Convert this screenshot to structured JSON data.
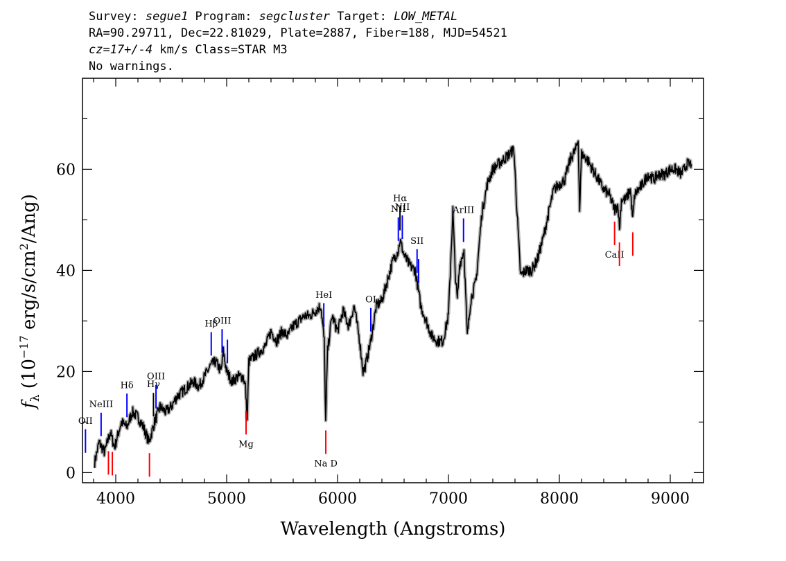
{
  "header": {
    "line1": {
      "survey_label": "Survey: ",
      "survey": "segue1",
      "program_label": " Program: ",
      "program": "segcluster",
      "target_label": " Target: ",
      "target": "LOW_METAL"
    },
    "line2": "RA=90.29711, Dec=22.81029, Plate=2887, Fiber=188, MJD=54521",
    "line3": {
      "cz": "cz=17+/-4",
      "rest": " km/s Class=STAR M3"
    },
    "line4": "No warnings."
  },
  "chart_data": {
    "type": "line",
    "xlabel": "Wavelength (Angstroms)",
    "ylabel": "f_λ (10^-17 erg/s/cm^2/Ang)",
    "ylabel_parts": {
      "flam": "f",
      "sub": "λ",
      "open": " (10",
      "exp1": "−17",
      "mid": " erg/s/cm",
      "exp2": "2",
      "close": "/Ang)"
    },
    "xlim": [
      3700,
      9300
    ],
    "ylim": [
      -2,
      78
    ],
    "xticks": [
      4000,
      5000,
      6000,
      7000,
      8000,
      9000
    ],
    "yticks": [
      0,
      20,
      40,
      60
    ],
    "series": [
      {
        "color": "#000000",
        "error_color": "#b0b0b0",
        "x": [
          3810,
          3850,
          3900,
          3950,
          3990,
          4050,
          4100,
          4150,
          4200,
          4250,
          4300,
          4350,
          4400,
          4450,
          4500,
          4550,
          4600,
          4650,
          4700,
          4750,
          4800,
          4850,
          4900,
          4950,
          4970,
          5000,
          5050,
          5100,
          5150,
          5170,
          5185,
          5200,
          5250,
          5300,
          5350,
          5400,
          5450,
          5500,
          5550,
          5600,
          5650,
          5700,
          5750,
          5800,
          5850,
          5880,
          5893,
          5910,
          5950,
          6000,
          6050,
          6100,
          6150,
          6200,
          6230,
          6250,
          6300,
          6350,
          6400,
          6450,
          6500,
          6550,
          6563,
          6600,
          6650,
          6700,
          6750,
          6800,
          6850,
          6900,
          6950,
          7000,
          7040,
          7060,
          7080,
          7100,
          7140,
          7170,
          7200,
          7250,
          7300,
          7350,
          7400,
          7450,
          7500,
          7550,
          7590,
          7620,
          7650,
          7700,
          7750,
          7800,
          7850,
          7900,
          7950,
          8000,
          8050,
          8100,
          8150,
          8170,
          8183,
          8200,
          8250,
          8300,
          8350,
          8400,
          8450,
          8500,
          8530,
          8542,
          8560,
          8600,
          8640,
          8662,
          8680,
          8750,
          8800,
          8850,
          8900,
          8950,
          9000,
          9050,
          9100,
          9150,
          9190
        ],
        "y": [
          2,
          6,
          4,
          8,
          5,
          10,
          9,
          12,
          11,
          9,
          6,
          10,
          13,
          12,
          13,
          15,
          16,
          17,
          18,
          17,
          19,
          21,
          22,
          20,
          24,
          20,
          18,
          19,
          19,
          17,
          10,
          22,
          23,
          24,
          25,
          28,
          26,
          28,
          27,
          29,
          30,
          31,
          31,
          32,
          33,
          26,
          10,
          24,
          31,
          28,
          32,
          29,
          33,
          26,
          20,
          21,
          26,
          33,
          34,
          38,
          42,
          44,
          46,
          43,
          41,
          40,
          33,
          30,
          27,
          26,
          26,
          31,
          52,
          40,
          34,
          41,
          44,
          27,
          34,
          38,
          51,
          57,
          60,
          61,
          62,
          63,
          64,
          51,
          39,
          40,
          40,
          42,
          46,
          51,
          56,
          57,
          58,
          62,
          64,
          66,
          52,
          63,
          62,
          60,
          58,
          56,
          55,
          52,
          53,
          48,
          54,
          54,
          56,
          50,
          55,
          57,
          59,
          58,
          59,
          59,
          60,
          60,
          59,
          61,
          61
        ]
      }
    ],
    "lines": [
      {
        "label": "OII",
        "display": "OII",
        "wavelength": 3727,
        "color": "#0000ff"
      },
      {
        "label": "NeIII",
        "display": "NeIII",
        "wavelength": 3868,
        "color": "#0000ff"
      },
      {
        "label": "Hδ",
        "display": "Hδ",
        "wavelength": 4101,
        "color": "#0000ff"
      },
      {
        "label": "Hγ",
        "display": "Hγ",
        "wavelength": 4340,
        "color": "#000000"
      },
      {
        "label": "OIII",
        "display": "OIII",
        "wavelength": 4363,
        "color": "#0000ff"
      },
      {
        "label": "Hβ",
        "display": "Hβ",
        "wavelength": 4861,
        "color": "#0000ff"
      },
      {
        "label": "OIII",
        "display": "OIII",
        "wavelength": 4959,
        "color": "#0000ff"
      },
      {
        "label": "OIII_2",
        "display": "",
        "wavelength": 5007,
        "color": "#0000ff"
      },
      {
        "label": "HeI",
        "display": "HeI",
        "wavelength": 5876,
        "color": "#0000ff"
      },
      {
        "label": "OI",
        "display": "OI",
        "wavelength": 6300,
        "color": "#0000ff"
      },
      {
        "label": "NII",
        "display": "NII",
        "wavelength": 6548,
        "color": "#0000ff"
      },
      {
        "label": "Hα",
        "display": "Hα",
        "wavelength": 6563,
        "color": "#000000"
      },
      {
        "label": "NII",
        "display": "NII",
        "wavelength": 6584,
        "color": "#0000ff"
      },
      {
        "label": "SII",
        "display": "SII",
        "wavelength": 6717,
        "color": "#0000ff"
      },
      {
        "label": "SII_2",
        "display": "",
        "wavelength": 6731,
        "color": "#0000ff"
      },
      {
        "label": "ArIII",
        "display": "ArIII",
        "wavelength": 7136,
        "color": "#0000ff"
      },
      {
        "label": "Mg",
        "display": "Mg",
        "wavelength": 5175,
        "color": "#ff0000"
      },
      {
        "label": "Na D",
        "display": "Na D",
        "wavelength": 5894,
        "color": "#ff0000"
      },
      {
        "label": "CaII",
        "display": "CaII",
        "wavelength": 8498,
        "color": "#ff0000"
      },
      {
        "label": "CaII_2",
        "display": "",
        "wavelength": 8542,
        "color": "#ff0000"
      },
      {
        "label": "CaII_3",
        "display": "",
        "wavelength": 8662,
        "color": "#ff0000"
      },
      {
        "label": "CaH_K",
        "display": "",
        "wavelength": 3934,
        "color": "#ff0000"
      },
      {
        "label": "CaH_K_2",
        "display": "",
        "wavelength": 3969,
        "color": "#ff0000"
      },
      {
        "label": "G",
        "display": "",
        "wavelength": 4304,
        "color": "#ff0000"
      }
    ]
  }
}
